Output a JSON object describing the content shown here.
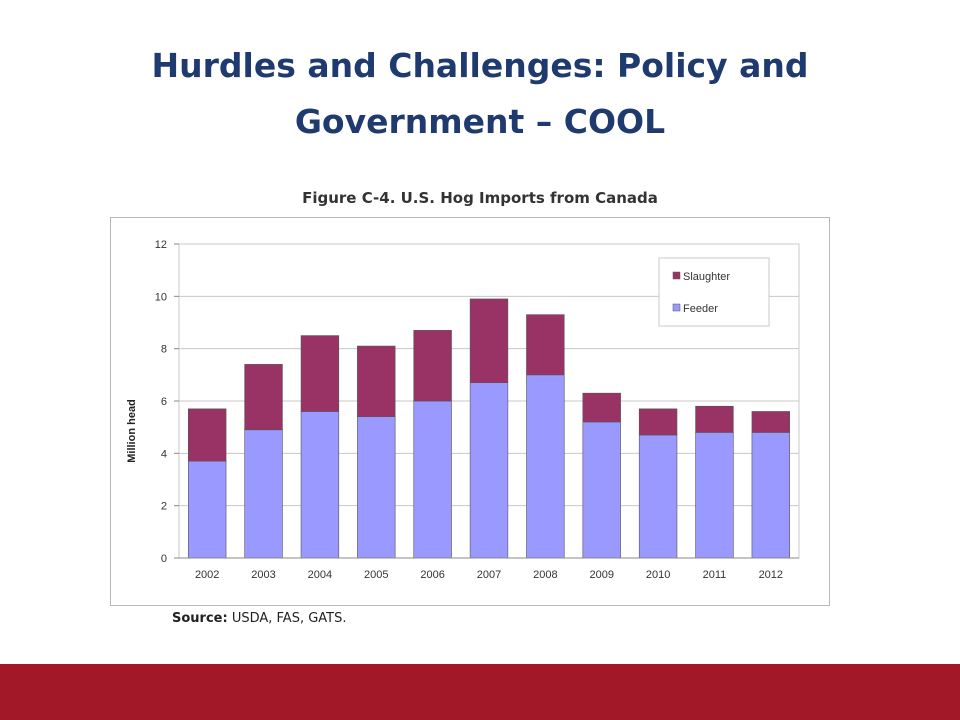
{
  "slide": {
    "title_line1": "Hurdles and Challenges: Policy and",
    "title_line2": "Government – COOL",
    "source_label": "Source:",
    "source_text": " USDA, FAS, GATS.",
    "footer_color": "#a31828"
  },
  "chart_data": {
    "type": "bar",
    "stacked": true,
    "title": "Figure C-4. U.S. Hog Imports from Canada",
    "xlabel": "",
    "ylabel": "Million head",
    "ylim": [
      0,
      12
    ],
    "yticks": [
      0,
      2,
      4,
      6,
      8,
      10,
      12
    ],
    "grid": true,
    "legend_position": "top-right",
    "categories": [
      "2002",
      "2003",
      "2004",
      "2005",
      "2006",
      "2007",
      "2008",
      "2009",
      "2010",
      "2011",
      "2012"
    ],
    "series": [
      {
        "name": "Feeder",
        "color": "#9999ff",
        "values": [
          3.7,
          4.9,
          5.6,
          5.4,
          6.0,
          6.7,
          7.0,
          5.2,
          4.7,
          4.8,
          4.8
        ]
      },
      {
        "name": "Slaughter",
        "color": "#993366",
        "values": [
          2.0,
          2.5,
          2.9,
          2.7,
          2.7,
          3.2,
          2.3,
          1.1,
          1.0,
          1.0,
          0.8
        ]
      }
    ]
  }
}
